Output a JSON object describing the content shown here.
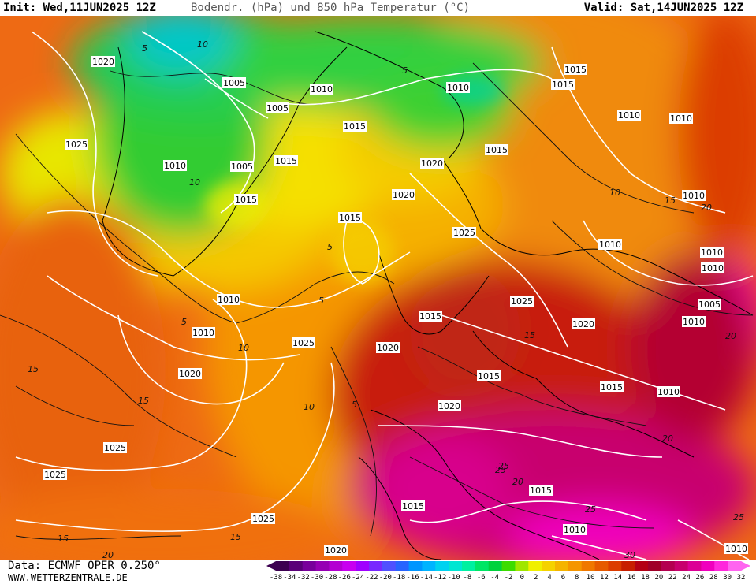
{
  "header": {
    "init": "Init: Wed,11JUN2025 12Z",
    "title": "Bodendr. (hPa) und 850 hPa Temperatur (°C)",
    "valid": "Valid: Sat,14JUN2025 12Z"
  },
  "footer": {
    "data_source": "Data: ECMWF OPER 0.250°",
    "website": "WWW.WETTERZENTRALE.DE"
  },
  "colorbar": {
    "ticks": [
      "-38",
      "-34",
      "-32",
      "-30",
      "-28",
      "-26",
      "-24",
      "-22",
      "-20",
      "-18",
      "-16",
      "-14",
      "-12",
      "-10",
      "-8",
      "-6",
      "-4",
      "-2",
      "0",
      "2",
      "4",
      "6",
      "8",
      "10",
      "12",
      "14",
      "16",
      "18",
      "20",
      "22",
      "24",
      "26",
      "28",
      "30",
      "32"
    ],
    "colors": [
      "#3c0050",
      "#5a0078",
      "#78009b",
      "#9600b4",
      "#b400d2",
      "#c800f0",
      "#a000ff",
      "#7828ff",
      "#5050ff",
      "#2864ff",
      "#0096ff",
      "#00b4ff",
      "#00d2f0",
      "#00e6d2",
      "#00f0a0",
      "#00e664",
      "#00d23c",
      "#3cdc00",
      "#a0e600",
      "#f0f000",
      "#f5d200",
      "#f5b400",
      "#f59600",
      "#f07800",
      "#e65a00",
      "#dc3c00",
      "#c81e00",
      "#b40014",
      "#a00028",
      "#b40050",
      "#c8006e",
      "#dc0096",
      "#f000be",
      "#ff28dc",
      "#ff64f0"
    ]
  },
  "map": {
    "isobar_labels": [
      {
        "text": "1020"
      },
      {
        "text": "1005"
      },
      {
        "text": "1010"
      },
      {
        "text": "1015"
      },
      {
        "text": "1010"
      },
      {
        "text": "1015"
      },
      {
        "text": "1005"
      },
      {
        "text": "1025"
      },
      {
        "text": "1010"
      },
      {
        "text": "1005"
      },
      {
        "text": "1015"
      },
      {
        "text": "1015"
      },
      {
        "text": "1015"
      },
      {
        "text": "1020"
      },
      {
        "text": "1020"
      },
      {
        "text": "1015"
      },
      {
        "text": "1010"
      },
      {
        "text": "1010"
      },
      {
        "text": "1010"
      },
      {
        "text": "1025"
      },
      {
        "text": "1010"
      },
      {
        "text": "1015"
      },
      {
        "text": "1010"
      },
      {
        "text": "1005"
      },
      {
        "text": "1010"
      },
      {
        "text": "1010"
      },
      {
        "text": "1025"
      },
      {
        "text": "1015"
      },
      {
        "text": "1020"
      },
      {
        "text": "1025"
      },
      {
        "text": "1020"
      },
      {
        "text": "1020"
      },
      {
        "text": "1015"
      },
      {
        "text": "1010"
      },
      {
        "text": "1020"
      },
      {
        "text": "1025"
      },
      {
        "text": "1025"
      },
      {
        "text": "1015"
      },
      {
        "text": "1010"
      },
      {
        "text": "1025"
      },
      {
        "text": "1015"
      },
      {
        "text": "1015"
      },
      {
        "text": "1010"
      },
      {
        "text": "1020"
      },
      {
        "text": "1010"
      },
      {
        "text": "1010"
      }
    ],
    "temp_labels": [
      {
        "text": "5"
      },
      {
        "text": "10"
      },
      {
        "text": "5"
      },
      {
        "text": "5"
      },
      {
        "text": "10"
      },
      {
        "text": "5"
      },
      {
        "text": "10"
      },
      {
        "text": "5"
      },
      {
        "text": "5"
      },
      {
        "text": "10"
      },
      {
        "text": "15"
      },
      {
        "text": "15"
      },
      {
        "text": "15"
      },
      {
        "text": "15"
      },
      {
        "text": "20"
      },
      {
        "text": "25"
      },
      {
        "text": "20"
      },
      {
        "text": "25"
      },
      {
        "text": "25"
      },
      {
        "text": "30"
      },
      {
        "text": "15"
      },
      {
        "text": "20"
      },
      {
        "text": "10"
      },
      {
        "text": "15"
      },
      {
        "text": "20"
      },
      {
        "text": "20"
      },
      {
        "text": "25"
      }
    ]
  }
}
